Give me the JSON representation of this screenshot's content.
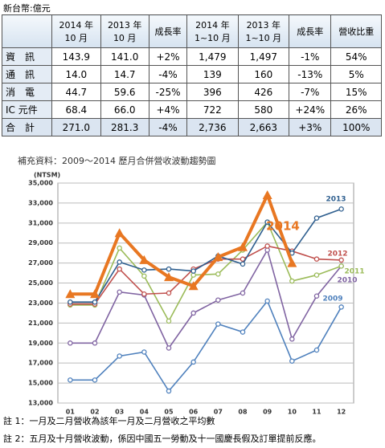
{
  "unit_note": "新台幣:億元",
  "table": {
    "header": [
      "",
      "2014 年\n10 月",
      "2013 年\n10 月",
      "成長率",
      "2014 年\n1~10 月",
      "2013 年\n1~10 月",
      "成長率",
      "營收比重"
    ],
    "rows": [
      [
        "資　訊",
        "143.9",
        "141.0",
        "+2%",
        "1,479",
        "1,497",
        "-1%",
        "54%"
      ],
      [
        "通　訊",
        "14.0",
        "14.7",
        "-4%",
        "139",
        "160",
        "-13%",
        "5%"
      ],
      [
        "消　電",
        "44.7",
        "59.6",
        "-25%",
        "396",
        "426",
        "-7%",
        "15%"
      ],
      [
        "IC 元件",
        "68.4",
        "66.0",
        "+4%",
        "722",
        "580",
        "+24%",
        "26%"
      ],
      [
        "合　計",
        "271.0",
        "281.3",
        "-4%",
        "2,736",
        "2,663",
        "+3%",
        "100%"
      ]
    ]
  },
  "chart_data": {
    "type": "line",
    "title": "補充資料：2009～2014 歷月合併營收波動趨勢圖",
    "y_label": "(NTSM)",
    "categories": [
      "01",
      "02",
      "03",
      "04",
      "05",
      "06",
      "07",
      "08",
      "09",
      "10",
      "11",
      "12"
    ],
    "ylim": [
      13000,
      35000
    ],
    "yticks": [
      {
        "value": 13000,
        "label": "13,000"
      },
      {
        "value": 15000,
        "label": "15,000"
      },
      {
        "value": 17000,
        "label": "17,000"
      },
      {
        "value": 19000,
        "label": "19,000"
      },
      {
        "value": 21000,
        "label": "21,000"
      },
      {
        "value": 23000,
        "label": "23,000"
      },
      {
        "value": 25000,
        "label": "25,000"
      },
      {
        "value": 27000,
        "label": "27,000"
      },
      {
        "value": 29000,
        "label": "29,000"
      },
      {
        "value": 31000,
        "label": "31,000"
      },
      {
        "value": 33000,
        "label": "33,000"
      },
      {
        "value": 35000,
        "label": "35,000"
      }
    ],
    "grid": true,
    "series": [
      {
        "name": "2009",
        "color": "#4f81bd",
        "values": [
          15300,
          15300,
          17700,
          18100,
          14200,
          17100,
          20900,
          20100,
          23200,
          17200,
          18300,
          22600
        ]
      },
      {
        "name": "2010",
        "color": "#8064a2",
        "values": [
          19000,
          19000,
          24100,
          23800,
          18500,
          22000,
          23300,
          24000,
          28300,
          19400,
          23700,
          26700
        ]
      },
      {
        "name": "2011",
        "color": "#9bbb59",
        "values": [
          22800,
          22800,
          28500,
          25700,
          21200,
          25800,
          25900,
          28300,
          31100,
          25200,
          25800,
          26700
        ]
      },
      {
        "name": "2012",
        "color": "#c0504d",
        "values": [
          22900,
          22900,
          26400,
          23900,
          24000,
          26400,
          27400,
          27400,
          28700,
          28200,
          27400,
          27300
        ]
      },
      {
        "name": "2013",
        "color": "#2f5f8f",
        "values": [
          23100,
          23100,
          27100,
          26300,
          26400,
          26200,
          27700,
          26900,
          31100,
          28000,
          31500,
          32400
        ]
      },
      {
        "name": "2014",
        "color": "#e87722",
        "values": [
          23900,
          23900,
          30000,
          27300,
          25600,
          24700,
          27600,
          28600,
          33800,
          27000,
          null,
          null
        ]
      }
    ],
    "notes": [
      "註 1：一月及二月營收為該年一月及二月營收之平均數",
      "註 2：五月及十月營收波動，係因中國五一勞動及十一國慶長假及訂單提前反應。"
    ]
  }
}
